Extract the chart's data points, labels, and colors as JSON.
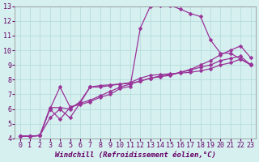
{
  "xlabel": "Windchill (Refroidissement éolien,°C)",
  "bg_color": "#d6f0f0",
  "grid_color": "#b0d8d8",
  "line_color": "#993399",
  "xlim": [
    -0.5,
    23.5
  ],
  "ylim": [
    4,
    13
  ],
  "xticks": [
    0,
    1,
    2,
    3,
    4,
    5,
    6,
    7,
    8,
    9,
    10,
    11,
    12,
    13,
    14,
    15,
    16,
    17,
    18,
    19,
    20,
    21,
    22,
    23
  ],
  "yticks": [
    4,
    5,
    6,
    7,
    8,
    9,
    10,
    11,
    12,
    13
  ],
  "lines": [
    {
      "x": [
        0,
        1,
        2,
        3,
        4,
        5,
        6,
        7,
        8,
        9,
        10,
        11,
        12,
        13,
        14,
        15,
        16,
        17,
        18,
        19,
        20,
        21,
        22,
        23
      ],
      "y": [
        4.15,
        4.15,
        4.2,
        6.1,
        6.1,
        6.0,
        6.5,
        7.5,
        7.5,
        7.6,
        7.7,
        7.8,
        8.1,
        8.3,
        8.35,
        8.4,
        8.45,
        8.5,
        8.6,
        8.75,
        9.0,
        9.15,
        9.4,
        9.0
      ]
    },
    {
      "x": [
        0,
        1,
        2,
        3,
        4,
        5,
        6,
        7,
        8,
        9,
        10,
        11,
        12,
        13,
        14,
        15,
        16,
        17,
        18,
        19,
        20,
        21,
        22,
        23
      ],
      "y": [
        4.15,
        4.15,
        4.2,
        6.0,
        7.5,
        6.15,
        6.3,
        6.5,
        6.8,
        7.0,
        7.4,
        7.55,
        11.5,
        13.0,
        13.05,
        13.05,
        12.8,
        12.5,
        12.3,
        10.7,
        9.8,
        9.8,
        9.4,
        9.05
      ]
    },
    {
      "x": [
        0,
        1,
        2,
        3,
        4,
        5,
        6,
        7,
        8,
        9,
        10,
        11,
        12,
        13,
        14,
        15,
        16,
        17,
        18,
        19,
        20,
        21,
        22,
        23
      ],
      "y": [
        4.15,
        4.15,
        4.2,
        6.0,
        5.3,
        6.1,
        6.4,
        7.5,
        7.6,
        7.65,
        7.7,
        7.75,
        7.9,
        8.1,
        8.2,
        8.3,
        8.5,
        8.7,
        9.0,
        9.3,
        9.7,
        10.0,
        10.3,
        9.5
      ]
    },
    {
      "x": [
        0,
        1,
        2,
        3,
        4,
        5,
        6,
        7,
        8,
        9,
        10,
        11,
        12,
        13,
        14,
        15,
        16,
        17,
        18,
        19,
        20,
        21,
        22,
        23
      ],
      "y": [
        4.15,
        4.15,
        4.2,
        5.4,
        6.0,
        5.4,
        6.4,
        6.6,
        6.9,
        7.2,
        7.5,
        7.7,
        7.9,
        8.1,
        8.25,
        8.35,
        8.5,
        8.65,
        8.85,
        9.0,
        9.3,
        9.45,
        9.6,
        9.0
      ]
    }
  ],
  "marker": "D",
  "marker_size": 2.5,
  "linewidth": 0.9,
  "font_size": 6.5,
  "tick_fontsize": 6
}
